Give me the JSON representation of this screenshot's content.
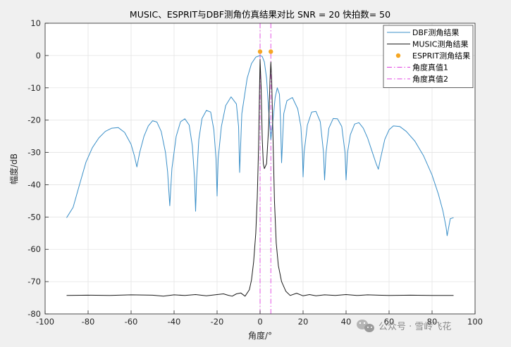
{
  "chart_data": {
    "type": "line",
    "title": "MUSIC、ESPRIT与DBF测角仿真结果对比 SNR = 20  快拍数= 50",
    "xlabel": "角度/°",
    "ylabel": "幅度/dB",
    "xlim": [
      -100,
      100
    ],
    "ylim": [
      -80,
      10
    ],
    "xticks": [
      -100,
      -80,
      -60,
      -40,
      -20,
      0,
      20,
      40,
      60,
      80,
      100
    ],
    "yticks": [
      10,
      0,
      -10,
      -20,
      -30,
      -40,
      -50,
      -60,
      -70,
      -80
    ],
    "grid": true,
    "legend_position": "top-right",
    "colors": {
      "dbf": "#3a8fc8",
      "music": "#1a1a1a",
      "esprit": "#f5a623",
      "truth": "#e040e0"
    },
    "series": [
      {
        "name": "DBF测角结果",
        "kind": "line",
        "points": [
          [
            -90,
            -50.2
          ],
          [
            -87,
            -47
          ],
          [
            -84,
            -40
          ],
          [
            -81,
            -33
          ],
          [
            -78,
            -28.5
          ],
          [
            -75,
            -25.5
          ],
          [
            -72,
            -23.5
          ],
          [
            -69,
            -22.5
          ],
          [
            -66,
            -22.3
          ],
          [
            -63,
            -23.8
          ],
          [
            -60,
            -27.5
          ],
          [
            -58.5,
            -31
          ],
          [
            -57.3,
            -34.5
          ],
          [
            -56,
            -30
          ],
          [
            -54,
            -25
          ],
          [
            -52,
            -21.8
          ],
          [
            -50,
            -20.2
          ],
          [
            -48,
            -20.6
          ],
          [
            -46,
            -23.5
          ],
          [
            -44,
            -30
          ],
          [
            -43,
            -36
          ],
          [
            -42,
            -46.5
          ],
          [
            -41,
            -35
          ],
          [
            -39,
            -25
          ],
          [
            -37,
            -20.5
          ],
          [
            -35,
            -19.6
          ],
          [
            -33,
            -21.5
          ],
          [
            -31.5,
            -28
          ],
          [
            -30.5,
            -38
          ],
          [
            -30,
            -48.2
          ],
          [
            -29.5,
            -38
          ],
          [
            -28.5,
            -26
          ],
          [
            -27,
            -19.5
          ],
          [
            -25,
            -17
          ],
          [
            -23,
            -17.5
          ],
          [
            -21.5,
            -23
          ],
          [
            -20.5,
            -32
          ],
          [
            -20,
            -43.5
          ],
          [
            -19.5,
            -32
          ],
          [
            -18,
            -22
          ],
          [
            -16,
            -15.5
          ],
          [
            -13.5,
            -12.8
          ],
          [
            -11,
            -15
          ],
          [
            -10,
            -22
          ],
          [
            -9.5,
            -36.2
          ],
          [
            -8.5,
            -18
          ],
          [
            -6,
            -7
          ],
          [
            -4,
            -2.5
          ],
          [
            -2,
            -0.5
          ],
          [
            0,
            0
          ],
          [
            1,
            -0.3
          ],
          [
            2,
            -2
          ],
          [
            3,
            -7
          ],
          [
            4,
            -17
          ],
          [
            5,
            -26
          ],
          [
            6,
            -20
          ],
          [
            7,
            -13
          ],
          [
            8,
            -10
          ],
          [
            9,
            -12
          ],
          [
            9.5,
            -20
          ],
          [
            10,
            -33.2
          ],
          [
            11,
            -18
          ],
          [
            12.5,
            -14
          ],
          [
            15,
            -13
          ],
          [
            17.5,
            -16.5
          ],
          [
            19,
            -22
          ],
          [
            19.7,
            -30
          ],
          [
            20,
            -37.6
          ],
          [
            20.5,
            -30
          ],
          [
            22,
            -21.5
          ],
          [
            24,
            -17.5
          ],
          [
            26,
            -17.3
          ],
          [
            28,
            -20.5
          ],
          [
            29.5,
            -30
          ],
          [
            30,
            -38.5
          ],
          [
            30.7,
            -30
          ],
          [
            32,
            -22.5
          ],
          [
            34,
            -19.5
          ],
          [
            36,
            -19.6
          ],
          [
            38,
            -22
          ],
          [
            39.5,
            -30
          ],
          [
            40,
            -38.5
          ],
          [
            40.7,
            -30
          ],
          [
            42,
            -24.5
          ],
          [
            44,
            -21.2
          ],
          [
            46,
            -20.8
          ],
          [
            48,
            -22.5
          ],
          [
            50,
            -25.5
          ],
          [
            52,
            -29.5
          ],
          [
            54,
            -33.5
          ],
          [
            55,
            -35.2
          ],
          [
            56,
            -32
          ],
          [
            58,
            -26
          ],
          [
            60,
            -23
          ],
          [
            62,
            -21.8
          ],
          [
            65,
            -22
          ],
          [
            68,
            -23.5
          ],
          [
            72,
            -26.5
          ],
          [
            76,
            -31
          ],
          [
            80,
            -37
          ],
          [
            83,
            -43
          ],
          [
            85,
            -48
          ],
          [
            86.5,
            -53
          ],
          [
            87,
            -55.8
          ],
          [
            87.5,
            -54
          ],
          [
            88.5,
            -50.5
          ],
          [
            90,
            -50.2
          ]
        ]
      },
      {
        "name": "MUSIC测角结果",
        "kind": "line",
        "points": [
          [
            -90,
            -74.3
          ],
          [
            -80,
            -74.2
          ],
          [
            -70,
            -74.3
          ],
          [
            -60,
            -74.1
          ],
          [
            -50,
            -74.2
          ],
          [
            -45,
            -74.5
          ],
          [
            -40,
            -74.1
          ],
          [
            -35,
            -74.3
          ],
          [
            -30,
            -74.0
          ],
          [
            -25,
            -74.4
          ],
          [
            -20,
            -74.0
          ],
          [
            -17,
            -73.8
          ],
          [
            -15,
            -74.2
          ],
          [
            -13,
            -74.5
          ],
          [
            -11,
            -73.8
          ],
          [
            -9,
            -73.5
          ],
          [
            -7,
            -74.5
          ],
          [
            -5,
            -72.5
          ],
          [
            -4,
            -69.5
          ],
          [
            -3,
            -64
          ],
          [
            -2,
            -55
          ],
          [
            -1.3,
            -44
          ],
          [
            -0.7,
            -28
          ],
          [
            -0.3,
            -12
          ],
          [
            0,
            -1.2
          ],
          [
            0.5,
            -10
          ],
          [
            1,
            -26
          ],
          [
            1.5,
            -33.5
          ],
          [
            2,
            -35
          ],
          [
            3,
            -33.5
          ],
          [
            4,
            -22
          ],
          [
            4.6,
            -8
          ],
          [
            5,
            -2
          ],
          [
            5.4,
            -8
          ],
          [
            6,
            -25
          ],
          [
            6.7,
            -45
          ],
          [
            7.5,
            -58
          ],
          [
            8.5,
            -65
          ],
          [
            10,
            -70
          ],
          [
            12,
            -73
          ],
          [
            14,
            -74.3
          ],
          [
            17,
            -73.6
          ],
          [
            20,
            -74.4
          ],
          [
            23,
            -74.0
          ],
          [
            26,
            -74.4
          ],
          [
            30,
            -74.1
          ],
          [
            35,
            -74.3
          ],
          [
            40,
            -74.0
          ],
          [
            45,
            -74.3
          ],
          [
            50,
            -74.1
          ],
          [
            55,
            -74.2
          ],
          [
            60,
            -74.3
          ],
          [
            70,
            -74.2
          ],
          [
            80,
            -74.3
          ],
          [
            90,
            -74.3
          ]
        ]
      },
      {
        "name": "ESPRIT测角结果",
        "kind": "scatter",
        "points": [
          [
            0,
            1.2
          ],
          [
            5,
            1.2
          ]
        ]
      },
      {
        "name": "角度真值1",
        "kind": "vline",
        "x": 0
      },
      {
        "name": "角度真值2",
        "kind": "vline",
        "x": 5
      }
    ]
  },
  "watermark": {
    "text": "公众号 · 雪岭飞花",
    "icon": "wechat-icon"
  }
}
